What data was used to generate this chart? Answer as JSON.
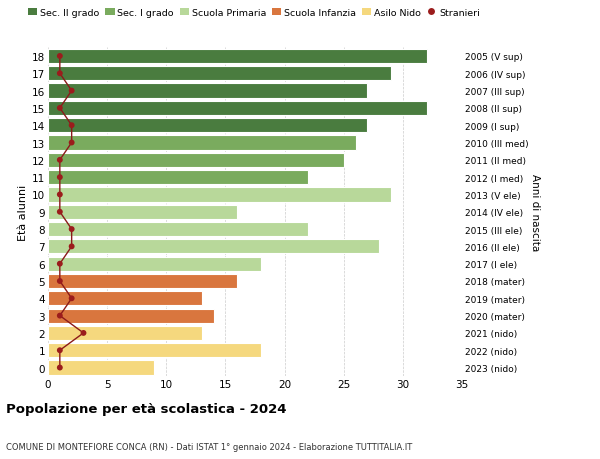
{
  "ages": [
    18,
    17,
    16,
    15,
    14,
    13,
    12,
    11,
    10,
    9,
    8,
    7,
    6,
    5,
    4,
    3,
    2,
    1,
    0
  ],
  "bar_values": [
    32,
    29,
    27,
    32,
    27,
    26,
    25,
    22,
    29,
    16,
    22,
    28,
    18,
    16,
    13,
    14,
    13,
    18,
    9
  ],
  "right_labels": [
    "2005 (V sup)",
    "2006 (IV sup)",
    "2007 (III sup)",
    "2008 (II sup)",
    "2009 (I sup)",
    "2010 (III med)",
    "2011 (II med)",
    "2012 (I med)",
    "2013 (V ele)",
    "2014 (IV ele)",
    "2015 (III ele)",
    "2016 (II ele)",
    "2017 (I ele)",
    "2018 (mater)",
    "2019 (mater)",
    "2020 (mater)",
    "2021 (nido)",
    "2022 (nido)",
    "2023 (nido)"
  ],
  "bar_colors": [
    "#4a7c3f",
    "#4a7c3f",
    "#4a7c3f",
    "#4a7c3f",
    "#4a7c3f",
    "#7aab5e",
    "#7aab5e",
    "#7aab5e",
    "#b8d89a",
    "#b8d89a",
    "#b8d89a",
    "#b8d89a",
    "#b8d89a",
    "#d9763e",
    "#d9763e",
    "#d9763e",
    "#f5d87e",
    "#f5d87e",
    "#f5d87e"
  ],
  "stranieri_values": [
    1,
    1,
    2,
    1,
    2,
    2,
    1,
    1,
    1,
    1,
    2,
    2,
    1,
    1,
    2,
    1,
    3,
    1,
    1
  ],
  "legend_labels": [
    "Sec. II grado",
    "Sec. I grado",
    "Scuola Primaria",
    "Scuola Infanzia",
    "Asilo Nido",
    "Stranieri"
  ],
  "legend_colors": [
    "#4a7c3f",
    "#7aab5e",
    "#b8d89a",
    "#d9763e",
    "#f5d87e",
    "#9b1c1c"
  ],
  "title": "Popolazione per età scolastica - 2024",
  "subtitle": "COMUNE DI MONTEFIORE CONCA (RN) - Dati ISTAT 1° gennaio 2024 - Elaborazione TUTTITALIA.IT",
  "ylabel": "Età alunni",
  "right_ylabel": "Anni di nascita",
  "xlim": [
    0,
    35
  ],
  "xticks": [
    0,
    5,
    10,
    15,
    20,
    25,
    30,
    35
  ],
  "background_color": "#ffffff",
  "bar_edge_color": "#ffffff"
}
